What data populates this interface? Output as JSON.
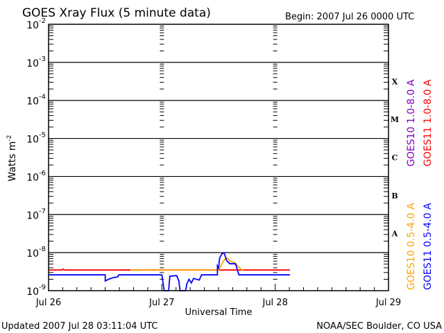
{
  "chart_data": {
    "type": "line",
    "title": "GOES Xray Flux (5 minute data)",
    "begin_label": "Begin:  2007 Jul 26 0000 UTC",
    "xlabel": "Universal Time",
    "ylabel": "Watts m",
    "ylabel_sup": "-2",
    "x_unit": "days since 2007 Jul 26 0000 UTC",
    "xlim": [
      0,
      3
    ],
    "x_ticks": [
      {
        "v": 0,
        "label": "Jul 26"
      },
      {
        "v": 1,
        "label": "Jul 27"
      },
      {
        "v": 2,
        "label": "Jul 28"
      },
      {
        "v": 3,
        "label": "Jul 29"
      }
    ],
    "yscale": "log",
    "ylim": [
      1e-09,
      0.01
    ],
    "y_ticks": [
      {
        "exp": "-2"
      },
      {
        "exp": "-3"
      },
      {
        "exp": "-4"
      },
      {
        "exp": "-5"
      },
      {
        "exp": "-6"
      },
      {
        "exp": "-7"
      },
      {
        "exp": "-8"
      },
      {
        "exp": "-9"
      }
    ],
    "y_tick_base": "10",
    "flare_classes": [
      {
        "label": "X",
        "v": 0.000316
      },
      {
        "label": "M",
        "v": 3.16e-05
      },
      {
        "label": "C",
        "v": 3.16e-06
      },
      {
        "label": "B",
        "v": 3.16e-07
      },
      {
        "label": "A",
        "v": 3.16e-08
      }
    ],
    "grid": true,
    "legend_placement": "right",
    "series": [
      {
        "name": "GOES10 1.0-8.0 A",
        "color": "#7f00c0",
        "points": [
          [
            0.69,
            3.5e-09
          ],
          [
            0.71,
            3.5e-09
          ]
        ]
      },
      {
        "name": "GOES11 1.0-8.0 A",
        "color": "#ff0000",
        "points": [
          [
            0.0,
            3.5e-09
          ],
          [
            0.12,
            3.5e-09
          ],
          [
            0.13,
            3.7e-09
          ],
          [
            0.14,
            3.5e-09
          ],
          [
            2.13,
            3.5e-09
          ]
        ]
      },
      {
        "name": "GOES10 0.5-4.0 A",
        "color": "#ffa500",
        "points": [
          [
            0.72,
            3.5e-09
          ],
          [
            0.78,
            3.5e-09
          ],
          [
            1.5,
            3.5e-09
          ],
          [
            1.55,
            6.5e-09
          ],
          [
            1.58,
            7.2e-09
          ],
          [
            1.6,
            6e-09
          ],
          [
            1.64,
            5.5e-09
          ],
          [
            1.67,
            4.5e-09
          ],
          [
            1.7,
            3.6e-09
          ],
          [
            1.72,
            3.5e-09
          ]
        ]
      },
      {
        "name": "GOES11 0.5-4.0 A",
        "color": "#0000ff",
        "points": [
          [
            0.0,
            2.6e-09
          ],
          [
            0.5,
            2.6e-09
          ],
          [
            0.5,
            1.8e-09
          ],
          [
            0.53,
            2e-09
          ],
          [
            0.57,
            2.2e-09
          ],
          [
            0.61,
            2.3e-09
          ],
          [
            0.62,
            2.6e-09
          ],
          [
            1.0,
            2.6e-09
          ],
          [
            1.01,
            1.6e-09
          ],
          [
            1.02,
            1e-09
          ],
          [
            1.06,
            1e-09
          ],
          [
            1.07,
            2.4e-09
          ],
          [
            1.13,
            2.5e-09
          ],
          [
            1.15,
            1.8e-09
          ],
          [
            1.16,
            1e-09
          ],
          [
            1.21,
            1e-09
          ],
          [
            1.22,
            1.5e-09
          ],
          [
            1.24,
            2e-09
          ],
          [
            1.26,
            1.6e-09
          ],
          [
            1.28,
            2.1e-09
          ],
          [
            1.33,
            1.9e-09
          ],
          [
            1.35,
            2.6e-09
          ],
          [
            1.49,
            2.6e-09
          ],
          [
            1.49,
            4.5e-09
          ],
          [
            1.5,
            4e-09
          ],
          [
            1.51,
            7.2e-09
          ],
          [
            1.53,
            9.3e-09
          ],
          [
            1.55,
            9.8e-09
          ],
          [
            1.57,
            6.3e-09
          ],
          [
            1.6,
            5.1e-09
          ],
          [
            1.65,
            5.1e-09
          ],
          [
            1.68,
            2.6e-09
          ],
          [
            2.13,
            2.6e-09
          ]
        ]
      }
    ]
  },
  "footer": {
    "updated": "Updated 2007 Jul 28 03:11:04 UTC",
    "credit": "NOAA/SEC Boulder, CO USA"
  }
}
